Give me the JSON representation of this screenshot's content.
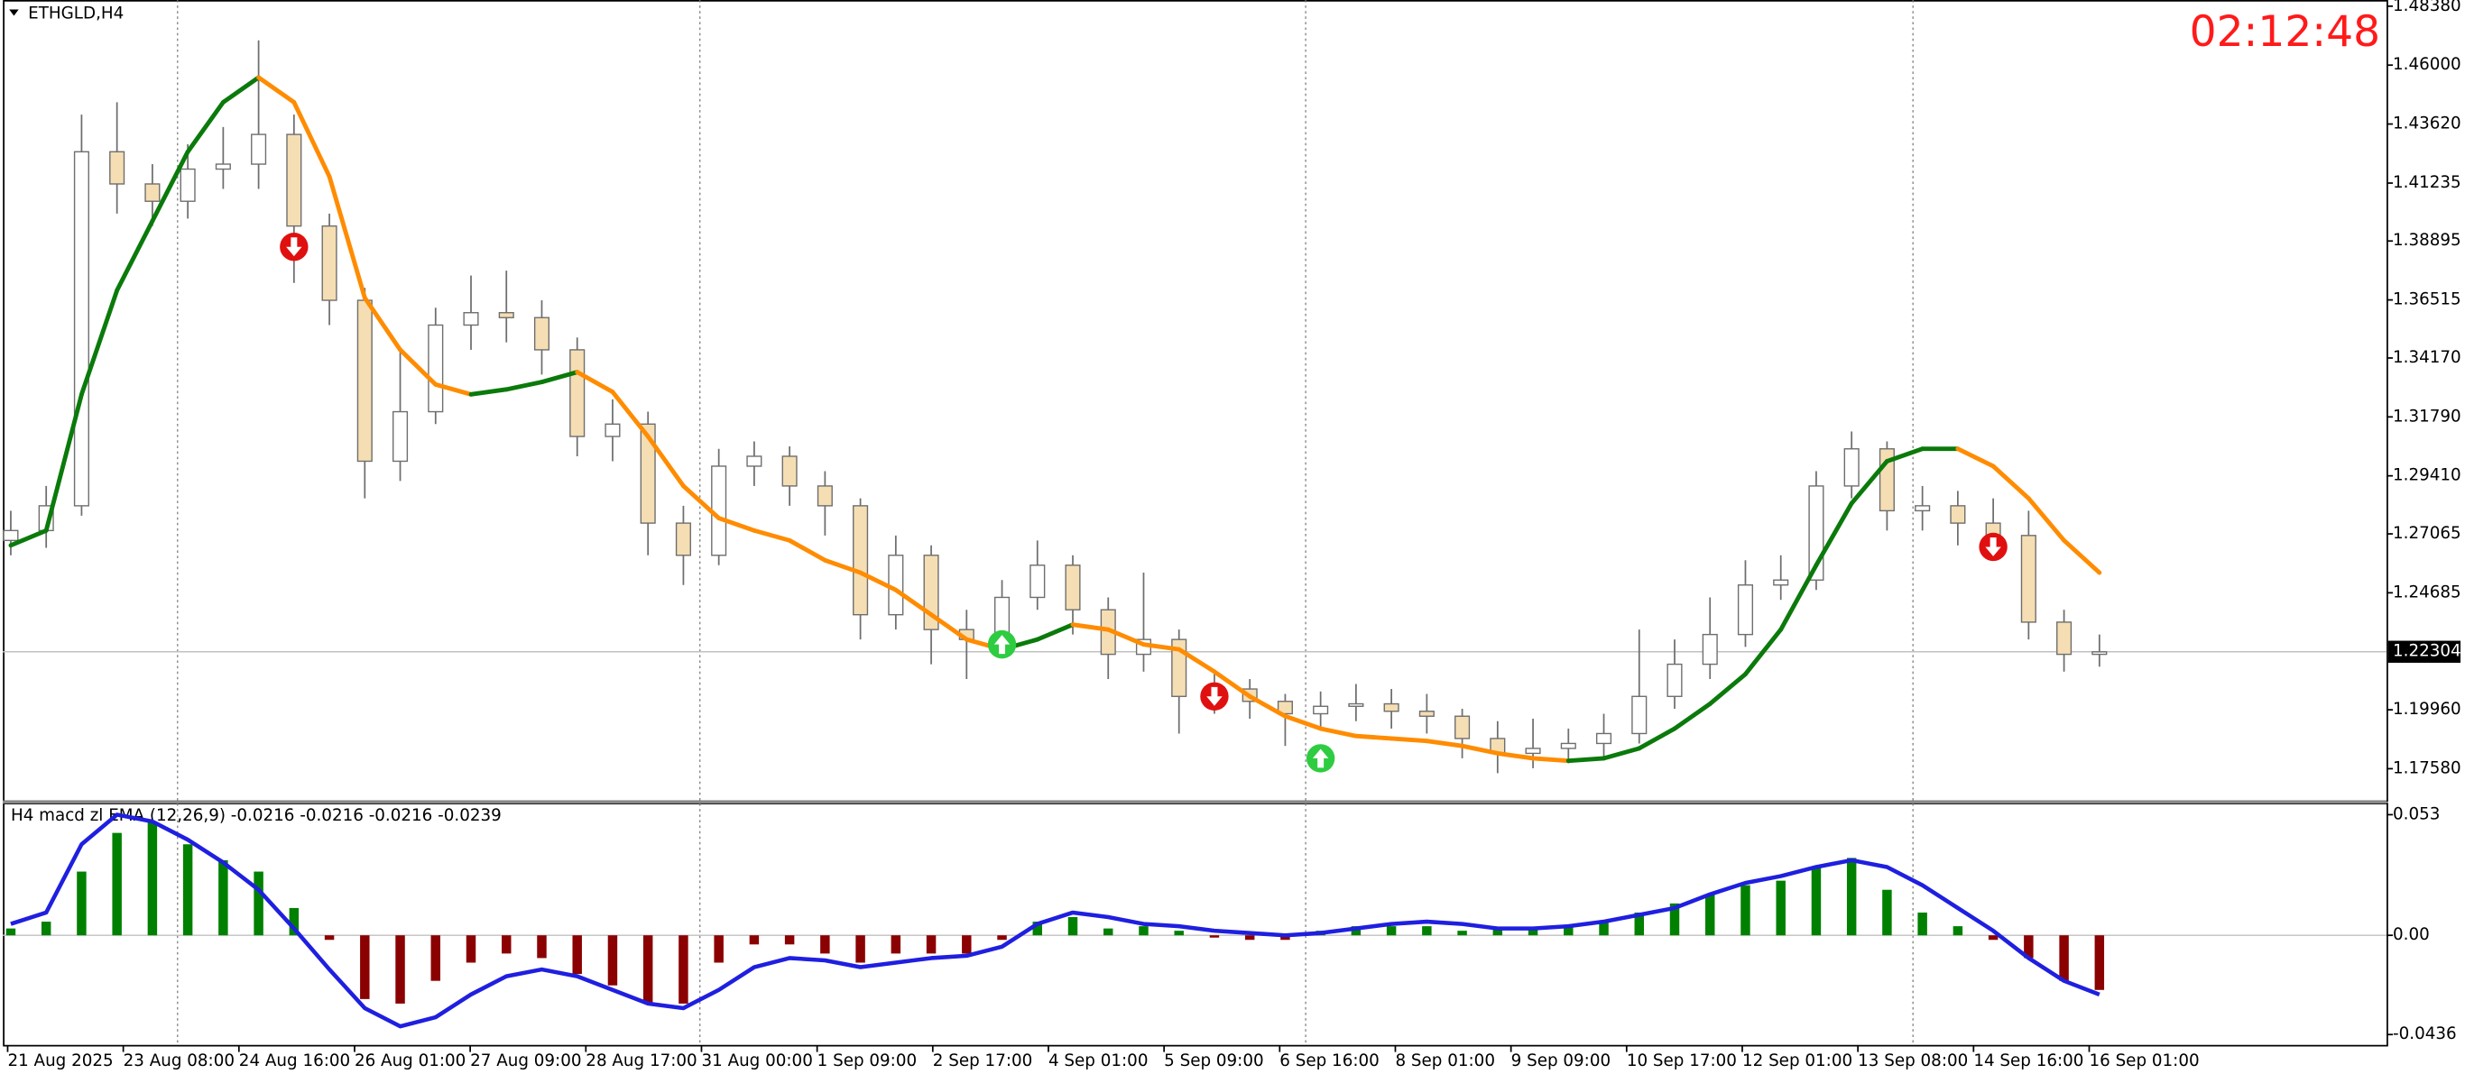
{
  "header": {
    "clock": "02:12:48"
  },
  "chart_data": [
    {
      "type": "candlestick",
      "title": "ETHGLD,H4",
      "open": [
        1.268,
        1.272,
        1.282,
        1.425,
        1.412,
        1.405,
        1.418,
        1.42,
        1.432,
        1.395,
        1.365,
        1.3,
        1.32,
        1.355,
        1.36,
        1.358,
        1.345,
        1.31,
        1.315,
        1.275,
        1.262,
        1.298,
        1.302,
        1.29,
        1.282,
        1.238,
        1.262,
        1.232,
        1.228,
        1.245,
        1.258,
        1.24,
        1.222,
        1.228,
        1.205,
        1.208,
        1.203,
        1.198,
        1.201,
        1.202,
        1.199,
        1.197,
        1.188,
        1.182,
        1.184,
        1.186,
        1.19,
        1.205,
        1.218,
        1.23,
        1.25,
        1.252,
        1.29,
        1.305,
        1.28,
        1.282,
        1.275,
        1.27,
        1.235,
        1.222
      ],
      "high": [
        1.28,
        1.29,
        1.44,
        1.445,
        1.42,
        1.428,
        1.435,
        1.47,
        1.44,
        1.4,
        1.37,
        1.345,
        1.362,
        1.375,
        1.377,
        1.365,
        1.35,
        1.325,
        1.32,
        1.282,
        1.305,
        1.308,
        1.306,
        1.296,
        1.285,
        1.27,
        1.266,
        1.24,
        1.252,
        1.268,
        1.262,
        1.245,
        1.255,
        1.232,
        1.214,
        1.212,
        1.206,
        1.207,
        1.21,
        1.208,
        1.206,
        1.2,
        1.195,
        1.196,
        1.192,
        1.198,
        1.232,
        1.228,
        1.245,
        1.26,
        1.262,
        1.296,
        1.312,
        1.308,
        1.29,
        1.288,
        1.285,
        1.28,
        1.24,
        1.23
      ],
      "low": [
        1.262,
        1.265,
        1.278,
        1.4,
        1.395,
        1.398,
        1.41,
        1.41,
        1.372,
        1.355,
        1.285,
        1.292,
        1.315,
        1.345,
        1.348,
        1.335,
        1.302,
        1.3,
        1.262,
        1.25,
        1.258,
        1.29,
        1.282,
        1.27,
        1.228,
        1.232,
        1.218,
        1.212,
        1.222,
        1.24,
        1.23,
        1.212,
        1.215,
        1.19,
        1.198,
        1.196,
        1.185,
        1.192,
        1.195,
        1.192,
        1.19,
        1.18,
        1.174,
        1.176,
        1.178,
        1.18,
        1.186,
        1.2,
        1.212,
        1.225,
        1.244,
        1.248,
        1.285,
        1.272,
        1.272,
        1.266,
        1.262,
        1.228,
        1.215,
        1.217
      ],
      "close": [
        1.272,
        1.282,
        1.425,
        1.412,
        1.405,
        1.418,
        1.42,
        1.432,
        1.395,
        1.365,
        1.3,
        1.32,
        1.355,
        1.36,
        1.358,
        1.345,
        1.31,
        1.315,
        1.275,
        1.262,
        1.298,
        1.302,
        1.29,
        1.282,
        1.238,
        1.262,
        1.232,
        1.228,
        1.245,
        1.258,
        1.24,
        1.222,
        1.228,
        1.205,
        1.208,
        1.203,
        1.198,
        1.201,
        1.202,
        1.199,
        1.197,
        1.188,
        1.182,
        1.184,
        1.186,
        1.19,
        1.205,
        1.218,
        1.23,
        1.25,
        1.252,
        1.29,
        1.305,
        1.28,
        1.282,
        1.275,
        1.27,
        1.235,
        1.222,
        1.223
      ],
      "up_color": "#ffffff",
      "down_color": "#f5deb3",
      "wick_color": "#6e6e6e",
      "trend_line": {
        "up_color": "#0a7a0a",
        "down_color": "#ff8c00",
        "values": [
          1.266,
          1.272,
          1.327,
          1.369,
          1.397,
          1.425,
          1.445,
          1.455,
          1.445,
          1.415,
          1.366,
          1.345,
          1.331,
          1.327,
          1.329,
          1.332,
          1.336,
          1.328,
          1.31,
          1.29,
          1.277,
          1.272,
          1.268,
          1.26,
          1.255,
          1.248,
          1.238,
          1.228,
          1.224,
          1.228,
          1.234,
          1.232,
          1.226,
          1.224,
          1.215,
          1.205,
          1.197,
          1.192,
          1.189,
          1.188,
          1.187,
          1.185,
          1.182,
          1.18,
          1.179,
          1.18,
          1.184,
          1.192,
          1.202,
          1.214,
          1.232,
          1.258,
          1.283,
          1.3,
          1.305,
          1.305,
          1.298,
          1.285,
          1.268,
          1.255
        ]
      },
      "signals": [
        {
          "index": 8,
          "price": 1.3866,
          "direction": "down",
          "color": "#e01010"
        },
        {
          "index": 28,
          "price": 1.226,
          "direction": "up",
          "color": "#2ecc40"
        },
        {
          "index": 34,
          "price": 1.205,
          "direction": "down",
          "color": "#e01010"
        },
        {
          "index": 37,
          "price": 1.18,
          "direction": "up",
          "color": "#2ecc40"
        },
        {
          "index": 56,
          "price": 1.2654,
          "direction": "down",
          "color": "#e01010"
        }
      ],
      "current_price": 1.22304,
      "ylim": [
        1.163,
        1.4863
      ],
      "yticks": [
        {
          "value": 1.4838,
          "label": "1.48380"
        },
        {
          "value": 1.46,
          "label": "1.46000"
        },
        {
          "value": 1.4362,
          "label": "1.43620"
        },
        1.41235,
        {
          "value": 1.38895,
          "label": "1.38895"
        },
        {
          "value": 1.36515,
          "label": "1.36515"
        },
        {
          "value": 1.3417,
          "label": "1.34170"
        },
        {
          "value": 1.3179,
          "label": "1.31790"
        },
        {
          "value": 1.2941,
          "label": "1.29410"
        },
        1.27065,
        1.24685,
        {
          "value": 1.1996,
          "label": "1.19960"
        },
        {
          "value": 1.1758,
          "label": "1.17580"
        }
      ]
    },
    {
      "type": "macd",
      "title": "H4  macd zl EMA (12,26,9)  -0.0216 -0.0216 -0.0216 -0.0239",
      "histogram": {
        "pos_color": "#008000",
        "neg_color": "#8b0000",
        "values": [
          0.003,
          0.006,
          0.028,
          0.045,
          0.05,
          0.04,
          0.033,
          0.028,
          0.012,
          -0.002,
          -0.028,
          -0.03,
          -0.02,
          -0.012,
          -0.008,
          -0.01,
          -0.017,
          -0.022,
          -0.03,
          -0.03,
          -0.012,
          -0.004,
          -0.004,
          -0.008,
          -0.012,
          -0.008,
          -0.008,
          -0.008,
          -0.002,
          0.006,
          0.008,
          0.003,
          0.004,
          0.002,
          -0.001,
          -0.002,
          -0.002,
          0.002,
          0.004,
          0.004,
          0.004,
          0.002,
          0.003,
          0.003,
          0.004,
          0.006,
          0.01,
          0.014,
          0.018,
          0.022,
          0.024,
          0.03,
          0.034,
          0.02,
          0.01,
          0.004,
          -0.002,
          -0.01,
          -0.02,
          -0.024
        ]
      },
      "signal": {
        "color": "#1f1fe0",
        "values": [
          0.005,
          0.01,
          0.04,
          0.053,
          0.05,
          0.042,
          0.032,
          0.02,
          0.003,
          -0.015,
          -0.032,
          -0.04,
          -0.036,
          -0.026,
          -0.018,
          -0.015,
          -0.018,
          -0.024,
          -0.03,
          -0.032,
          -0.024,
          -0.014,
          -0.01,
          -0.011,
          -0.014,
          -0.012,
          -0.01,
          -0.009,
          -0.005,
          0.005,
          0.01,
          0.008,
          0.005,
          0.004,
          0.002,
          0.001,
          0,
          0.001,
          0.003,
          0.005,
          0.006,
          0.005,
          0.003,
          0.003,
          0.004,
          0.006,
          0.009,
          0.012,
          0.018,
          0.023,
          0.026,
          0.03,
          0.033,
          0.03,
          0.022,
          0.012,
          0.002,
          -0.01,
          -0.02,
          -0.026
        ]
      },
      "ylim": [
        -0.0485,
        0.0579
      ],
      "yticks": [
        0.053,
        {
          "value": 0,
          "label": "0.00"
        },
        -0.0436
      ],
      "x_labels": [
        "21 Aug 2025",
        "23 Aug 08:00",
        "24 Aug 16:00",
        "26 Aug 01:00",
        "27 Aug 09:00",
        "28 Aug 17:00",
        "31 Aug 00:00",
        "1 Sep 09:00",
        "2 Sep 17:00",
        "4 Sep 01:00",
        "5 Sep 09:00",
        "6 Sep 16:00",
        "8 Sep 01:00",
        "9 Sep 09:00",
        "10 Sep 17:00",
        "12 Sep 01:00",
        "13 Sep 08:00",
        "14 Sep 16:00",
        "16 Sep 01:00"
      ]
    }
  ]
}
